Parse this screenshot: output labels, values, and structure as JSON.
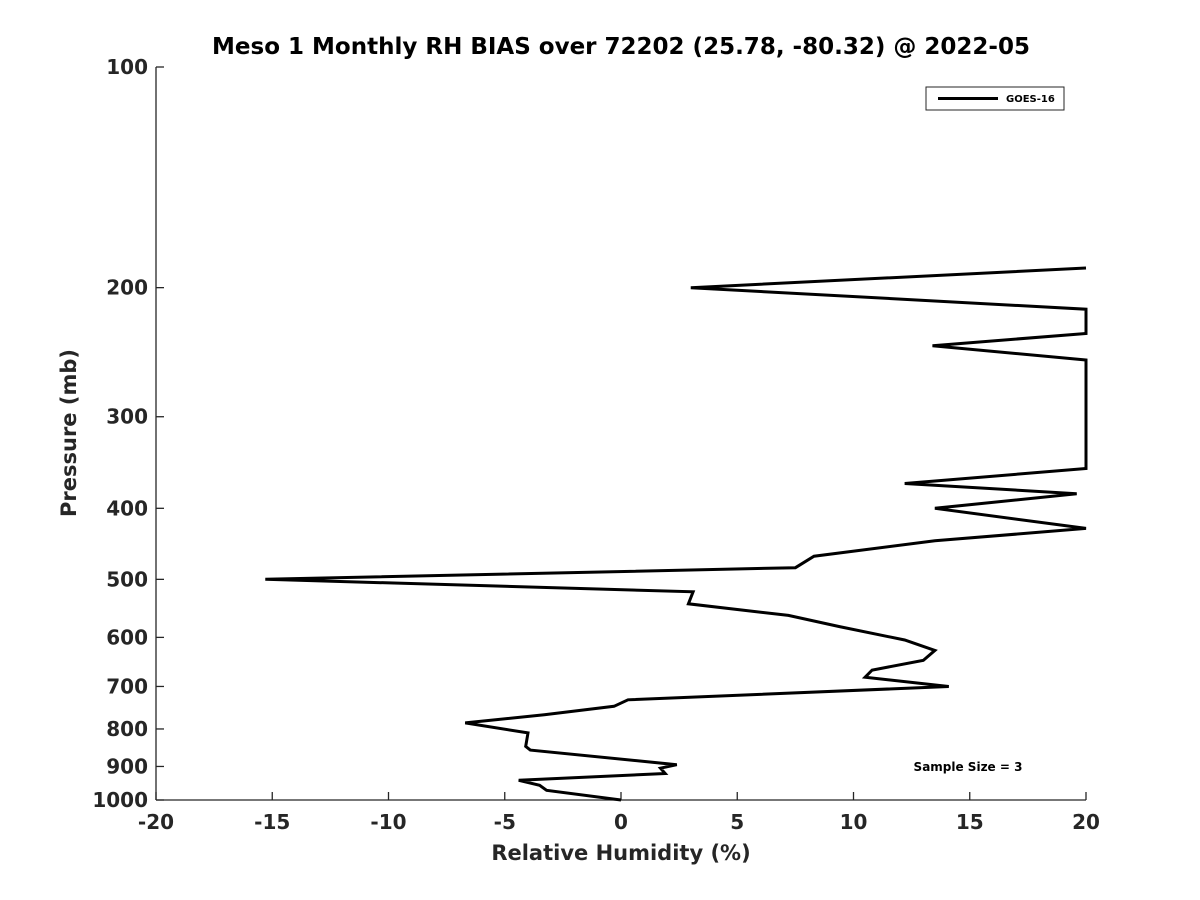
{
  "chart_data": {
    "type": "line",
    "title": "Meso 1 Monthly RH BIAS over 72202 (25.78, -80.32) @ 2022-05",
    "xlabel": "Relative Humidity (%)",
    "ylabel": "Pressure (mb)",
    "xlim": [
      -20,
      20
    ],
    "ylim": [
      100,
      1000
    ],
    "yscale": "log",
    "yreversed": true,
    "xticks": [
      -20,
      -15,
      -10,
      -5,
      0,
      5,
      10,
      15,
      20
    ],
    "xtick_labels": [
      "-20",
      "-15",
      "-10",
      "-5",
      "0",
      "5",
      "10",
      "15",
      "20"
    ],
    "yticks": [
      100,
      200,
      300,
      400,
      500,
      600,
      700,
      800,
      900,
      1000
    ],
    "ytick_labels": [
      "100",
      "200",
      "300",
      "400",
      "500",
      "600",
      "700",
      "800",
      "900",
      "1000"
    ],
    "grid": false,
    "legend_position": "top-right",
    "annotation": "Sample Size = 3",
    "series": [
      {
        "name": "GOES-16",
        "color": "#000000",
        "x": [
          0.0,
          -3.2,
          -3.5,
          -4.4,
          1.9,
          1.7,
          2.4,
          -3.9,
          -4.1,
          -4.0,
          -6.7,
          -3.3,
          -0.3,
          0.3,
          14.1,
          10.5,
          10.8,
          13.0,
          13.5,
          12.2,
          9.4,
          7.2,
          2.9,
          3.1,
          -15.3,
          7.5,
          8.3,
          13.5,
          20.0,
          13.5,
          19.6,
          12.2,
          20.0,
          20.0,
          13.4,
          20.0,
          20.0,
          3.0,
          20.0
        ],
        "y": [
          1000,
          970,
          955,
          940,
          920,
          905,
          895,
          855,
          845,
          810,
          785,
          765,
          745,
          730,
          700,
          680,
          665,
          645,
          625,
          605,
          580,
          560,
          540,
          520,
          500,
          482,
          465,
          443,
          426,
          400,
          382,
          370,
          353,
          251,
          240,
          231,
          214,
          200,
          188
        ]
      }
    ]
  }
}
